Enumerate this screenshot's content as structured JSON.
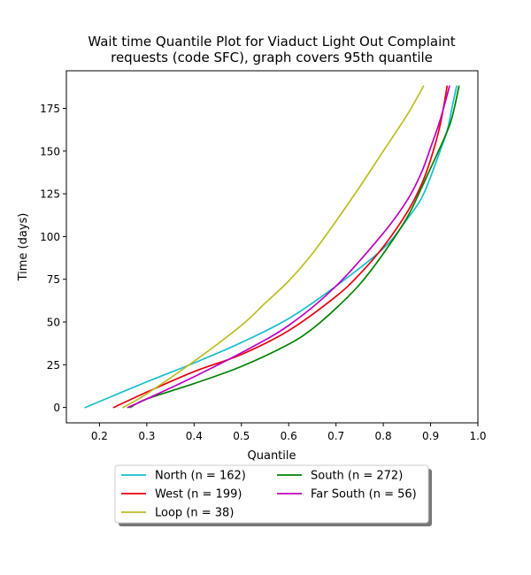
{
  "chart_data": {
    "type": "line",
    "title_lines": [
      "Wait time Quantile Plot for Viaduct Light Out Complaint",
      "requests (code SFC), graph covers 95th quantile"
    ],
    "xlabel": "Quantile",
    "ylabel": "Time (days)",
    "xlim": [
      0.13,
      1.0
    ],
    "ylim": [
      -9,
      197
    ],
    "xticks": [
      0.2,
      0.3,
      0.4,
      0.5,
      0.6,
      0.7,
      0.8,
      0.9,
      1.0
    ],
    "xtick_labels": [
      "0.2",
      "0.3",
      "0.4",
      "0.5",
      "0.6",
      "0.7",
      "0.8",
      "0.9",
      "1.0"
    ],
    "yticks": [
      0,
      25,
      50,
      75,
      100,
      125,
      150,
      175
    ],
    "ytick_labels": [
      "0",
      "25",
      "50",
      "75",
      "100",
      "125",
      "150",
      "175"
    ],
    "grid": false,
    "legend": {
      "placement": "below plot, two columns",
      "shadow": true
    },
    "series": [
      {
        "name": "North (n = 162)",
        "color": "#17becf",
        "x": [
          0.17,
          0.3,
          0.4,
          0.5,
          0.6,
          0.7,
          0.8,
          0.85,
          0.88,
          0.9,
          0.92,
          0.935,
          0.945,
          0.955
        ],
        "y": [
          0,
          15,
          26,
          38,
          52,
          71,
          93,
          110,
          122,
          135,
          150,
          162,
          175,
          188
        ]
      },
      {
        "name": "West (n = 199)",
        "color": "#e8000b",
        "x": [
          0.23,
          0.3,
          0.4,
          0.5,
          0.6,
          0.7,
          0.75,
          0.8,
          0.85,
          0.88,
          0.9,
          0.92,
          0.935
        ],
        "y": [
          0,
          9,
          21,
          31,
          45,
          65,
          78,
          94,
          114,
          130,
          145,
          165,
          188
        ]
      },
      {
        "name": "Loop (n = 38)",
        "color": "#bcbd22",
        "x": [
          0.25,
          0.3,
          0.4,
          0.5,
          0.55,
          0.6,
          0.65,
          0.7,
          0.75,
          0.8,
          0.85,
          0.885
        ],
        "y": [
          0,
          8,
          27,
          48,
          61,
          74,
          90,
          109,
          129,
          150,
          171,
          188
        ]
      },
      {
        "name": "South (n = 272)",
        "color": "#008000",
        "x": [
          0.265,
          0.3,
          0.4,
          0.5,
          0.6,
          0.65,
          0.7,
          0.75,
          0.8,
          0.85,
          0.88,
          0.9,
          0.92,
          0.94,
          0.95,
          0.96
        ],
        "y": [
          0,
          5,
          14,
          24,
          37,
          46,
          58,
          72,
          90,
          111,
          128,
          140,
          152,
          165,
          175,
          188
        ]
      },
      {
        "name": "Far South (n = 56)",
        "color": "#bf00bf",
        "x": [
          0.26,
          0.3,
          0.4,
          0.5,
          0.6,
          0.7,
          0.8,
          0.85,
          0.88,
          0.9,
          0.92,
          0.94
        ],
        "y": [
          0,
          5,
          18,
          32,
          48,
          71,
          102,
          121,
          137,
          152,
          168,
          188
        ]
      }
    ]
  }
}
